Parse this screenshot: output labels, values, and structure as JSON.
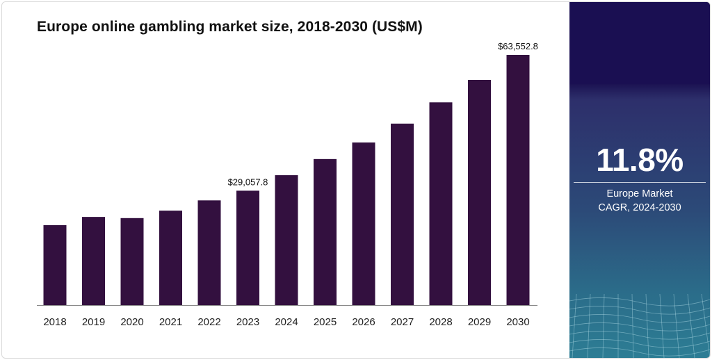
{
  "title": "Europe online gambling market size, 2018-2030 (US$M)",
  "colors": {
    "bar": "#33103f",
    "axis": "#888888",
    "panel_top": "#1a0f52",
    "panel_bottom": "#2d7d94"
  },
  "chart_data": {
    "type": "bar",
    "categories": [
      "2018",
      "2019",
      "2020",
      "2021",
      "2022",
      "2023",
      "2024",
      "2025",
      "2026",
      "2027",
      "2028",
      "2029",
      "2030"
    ],
    "values": [
      20300,
      22400,
      22100,
      24000,
      26600,
      29057.8,
      33000,
      37100,
      41300,
      46100,
      51500,
      57200,
      63552.8
    ],
    "data_labels": {
      "5": "$29,057.8",
      "12": "$63,552.8"
    },
    "ylim": [
      0,
      63552.8
    ],
    "xlabel": "",
    "ylabel": "",
    "grid": false,
    "legend": "none"
  },
  "sidebar": {
    "cagr_value": "11.8%",
    "cagr_label_line1": "Europe Market",
    "cagr_label_line2": "CAGR, 2024-2030",
    "icon": "wave-grid-icon"
  }
}
